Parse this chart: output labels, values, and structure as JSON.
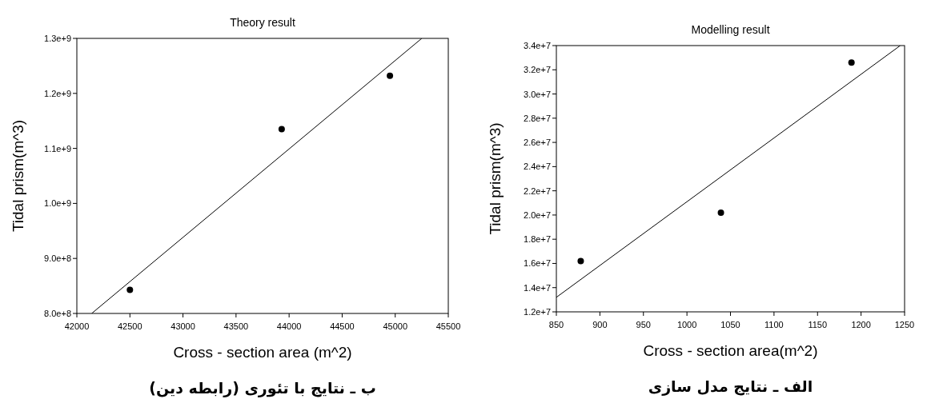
{
  "chart_data": [
    {
      "type": "scatter",
      "title": "Theory result",
      "xlabel": "Cross - section area (m^2)",
      "ylabel": "Tidal prism(m^3)",
      "xlim": [
        42000,
        45500
      ],
      "xticks": [
        42000,
        42500,
        43000,
        43500,
        44000,
        44500,
        45000,
        45500
      ],
      "ylim": [
        800000000,
        1300000000
      ],
      "yticks": [
        {
          "value": 800000000,
          "label": "8.0e+8"
        },
        {
          "value": 900000000,
          "label": "9.0e+8"
        },
        {
          "value": 1000000000,
          "label": "1.0e+9"
        },
        {
          "value": 1100000000,
          "label": "1.1e+9"
        },
        {
          "value": 1200000000,
          "label": "1.2e+9"
        },
        {
          "value": 1300000000,
          "label": "1.3e+9"
        }
      ],
      "grid": false,
      "series": [
        {
          "color": "#000000",
          "marker": "circle",
          "x": [
            42500,
            43930,
            44950
          ],
          "values": [
            843000000,
            1135000000,
            1232000000
          ]
        },
        {
          "type": "line",
          "color": "#000000",
          "marker": "none",
          "line_style": "solid",
          "x": [
            42140,
            45250
          ],
          "values": [
            800000000,
            1300000000
          ]
        }
      ],
      "annotations": [
        "ب ـ نتایج با تئوری (رابطه دین)"
      ]
    },
    {
      "type": "scatter",
      "title": "Modelling result",
      "xlabel": "Cross - section area(m^2)",
      "ylabel": "Tidal prism(m^3)",
      "xlim": [
        850,
        1250
      ],
      "xticks": [
        850,
        900,
        950,
        1000,
        1050,
        1100,
        1150,
        1200,
        1250
      ],
      "ylim": [
        12000000,
        34000000
      ],
      "yticks": [
        {
          "value": 12000000,
          "label": "1.2e+7"
        },
        {
          "value": 14000000,
          "label": "1.4e+7"
        },
        {
          "value": 16000000,
          "label": "1.6e+7"
        },
        {
          "value": 18000000,
          "label": "1.8e+7"
        },
        {
          "value": 20000000,
          "label": "2.0e+7"
        },
        {
          "value": 22000000,
          "label": "2.2e+7"
        },
        {
          "value": 24000000,
          "label": "2.4e+7"
        },
        {
          "value": 26000000,
          "label": "2.6e+7"
        },
        {
          "value": 28000000,
          "label": "2.8e+7"
        },
        {
          "value": 30000000,
          "label": "3.0e+7"
        },
        {
          "value": 32000000,
          "label": "3.2e+7"
        },
        {
          "value": 34000000,
          "label": "3.4e+7"
        }
      ],
      "grid": false,
      "series": [
        {
          "color": "#000000",
          "marker": "circle",
          "x": [
            878,
            1039,
            1189
          ],
          "values": [
            16200000,
            20200000,
            32600000
          ]
        },
        {
          "type": "line",
          "color": "#000000",
          "marker": "none",
          "line_style": "solid",
          "x": [
            850,
            1245
          ],
          "values": [
            13200000,
            34000000
          ]
        }
      ],
      "annotations": [
        "الف ـ نتایج مدل سازی"
      ]
    }
  ]
}
